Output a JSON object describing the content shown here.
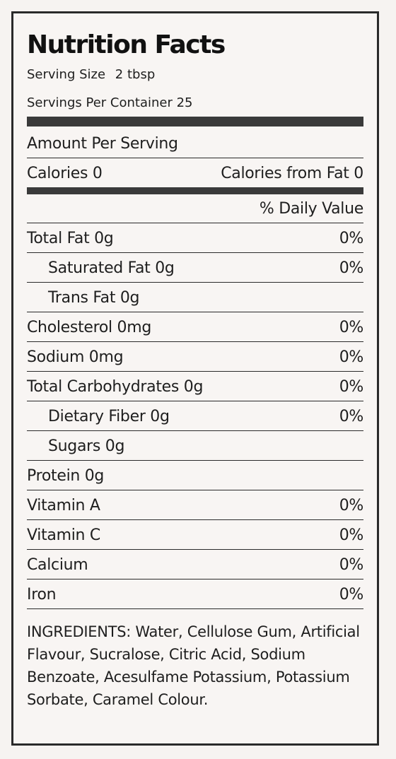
{
  "title": "Nutrition Facts",
  "serving_size": {
    "label": "Serving Size",
    "value": "2",
    "unit": "tbsp"
  },
  "servings_per_container": "Servings Per Container 25",
  "amount_per_serving": "Amount Per Serving",
  "calories": "Calories 0",
  "calories_from_fat": "Calories from Fat 0",
  "daily_value_header": "% Daily Value",
  "nutrients": [
    {
      "name": "Total Fat 0g",
      "dv": "0%"
    },
    {
      "name": "Saturated Fat 0g",
      "dv": "0%"
    },
    {
      "name": "Trans Fat 0g",
      "dv": ""
    },
    {
      "name": "Cholesterol 0mg",
      "dv": "0%"
    },
    {
      "name": "Sodium 0mg",
      "dv": "0%"
    },
    {
      "name": "Total Carbohydrates 0g",
      "dv": "0%"
    },
    {
      "name": "Dietary Fiber 0g",
      "dv": "0%"
    },
    {
      "name": "Sugars 0g",
      "dv": ""
    },
    {
      "name": "Protein 0g",
      "dv": ""
    },
    {
      "name": "Vitamin A",
      "dv": "0%"
    },
    {
      "name": "Vitamin C",
      "dv": "0%"
    },
    {
      "name": "Calcium",
      "dv": "0%"
    },
    {
      "name": "Iron",
      "dv": "0%"
    }
  ],
  "ingredients": "INGREDIENTS: Water, Cellulose Gum, Artificial Flavour, Sucralose, Citric Acid, Sodium Benzoate, Acesulfame Potassium, Potassium Sorbate, Caramel Colour."
}
